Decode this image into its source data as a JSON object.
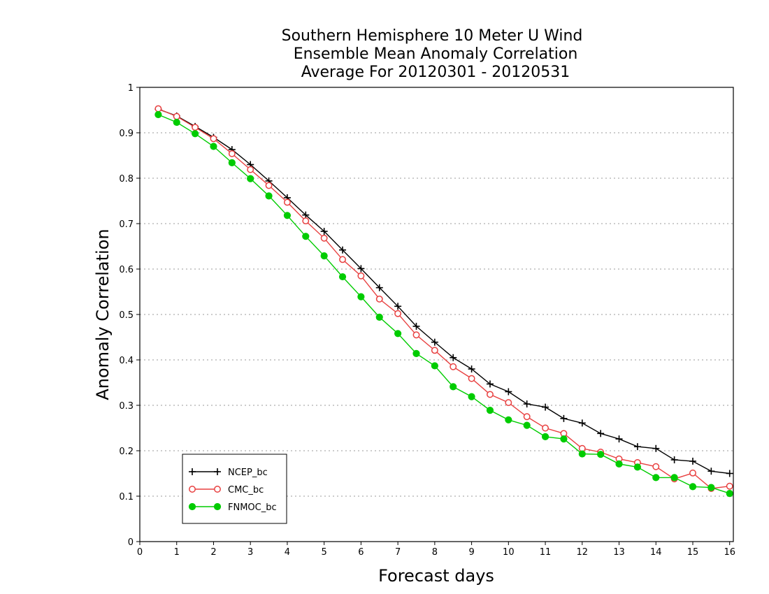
{
  "chart_data": {
    "type": "line",
    "title": [
      "Southern Hemisphere 10 Meter U Wind",
      "Ensemble Mean Anomaly Correlation",
      "Average For 20120301 - 20120531"
    ],
    "xlabel": "Forecast days",
    "ylabel": "Anomaly Correlation",
    "xlim": [
      0,
      16.1
    ],
    "ylim": [
      0,
      1
    ],
    "x_ticks": [
      0,
      1,
      2,
      3,
      4,
      5,
      6,
      7,
      8,
      9,
      10,
      11,
      12,
      13,
      14,
      15,
      16
    ],
    "y_ticks": [
      0,
      0.1,
      0.2,
      0.3,
      0.4,
      0.5,
      0.6,
      0.7,
      0.8,
      0.9,
      1
    ],
    "grid": "horizontal dotted",
    "legend_position": "bottom-left",
    "x": [
      0.5,
      1,
      1.5,
      2,
      2.5,
      3,
      3.5,
      4,
      4.5,
      5,
      5.5,
      6,
      6.5,
      7,
      7.5,
      8,
      8.5,
      9,
      9.5,
      10,
      10.5,
      11,
      11.5,
      12,
      12.5,
      13,
      13.5,
      14,
      14.5,
      15,
      15.5,
      16
    ],
    "series": [
      {
        "name": "NCEP_bc",
        "color": "#000000",
        "marker": "plus",
        "values": [
          0.952,
          0.937,
          0.914,
          0.89,
          0.863,
          0.83,
          0.794,
          0.757,
          0.719,
          0.683,
          0.642,
          0.601,
          0.559,
          0.518,
          0.474,
          0.439,
          0.405,
          0.38,
          0.347,
          0.33,
          0.303,
          0.296,
          0.271,
          0.261,
          0.238,
          0.226,
          0.209,
          0.205,
          0.18,
          0.177,
          0.155,
          0.15
        ]
      },
      {
        "name": "CMC_bc",
        "color": "#e84040",
        "marker": "open-circle",
        "values": [
          0.953,
          0.936,
          0.912,
          0.887,
          0.854,
          0.819,
          0.784,
          0.747,
          0.706,
          0.668,
          0.621,
          0.585,
          0.534,
          0.502,
          0.455,
          0.421,
          0.385,
          0.359,
          0.324,
          0.306,
          0.275,
          0.25,
          0.238,
          0.205,
          0.197,
          0.182,
          0.174,
          0.165,
          0.138,
          0.151,
          0.117,
          0.122
        ]
      },
      {
        "name": "FNMOC_bc",
        "color": "#00cc00",
        "marker": "filled-circle",
        "values": [
          0.94,
          0.923,
          0.898,
          0.87,
          0.834,
          0.799,
          0.761,
          0.718,
          0.672,
          0.629,
          0.583,
          0.539,
          0.494,
          0.458,
          0.414,
          0.387,
          0.341,
          0.319,
          0.289,
          0.268,
          0.256,
          0.231,
          0.226,
          0.193,
          0.192,
          0.171,
          0.164,
          0.141,
          0.141,
          0.121,
          0.119,
          0.106
        ]
      }
    ]
  }
}
